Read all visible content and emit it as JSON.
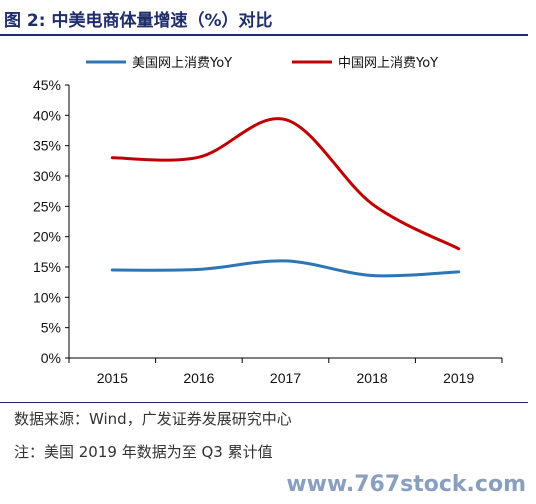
{
  "title": "图 2: 中美电商体量增速（%）对比",
  "chart_data": {
    "type": "line",
    "x": [
      "2015",
      "2016",
      "2017",
      "2018",
      "2019"
    ],
    "series": [
      {
        "name": "美国网上消费YoY",
        "values": [
          14.5,
          14.6,
          16.0,
          13.6,
          14.2
        ],
        "color": "#2e75b6"
      },
      {
        "name": "中国网上消费YoY",
        "values": [
          33.0,
          33.1,
          39.3,
          25.4,
          18.0
        ],
        "color": "#c00000"
      }
    ],
    "y_ticks": [
      "0%",
      "5%",
      "10%",
      "15%",
      "20%",
      "25%",
      "30%",
      "35%",
      "40%",
      "45%"
    ],
    "ylim": [
      0,
      45
    ],
    "grid": false,
    "legend_position": "top"
  },
  "source_text": "数据来源：Wind，广发证券发展研究中心",
  "note_text": "注：美国 2019 年数据为至 Q3 累计值",
  "watermark": "www.767stock.com"
}
